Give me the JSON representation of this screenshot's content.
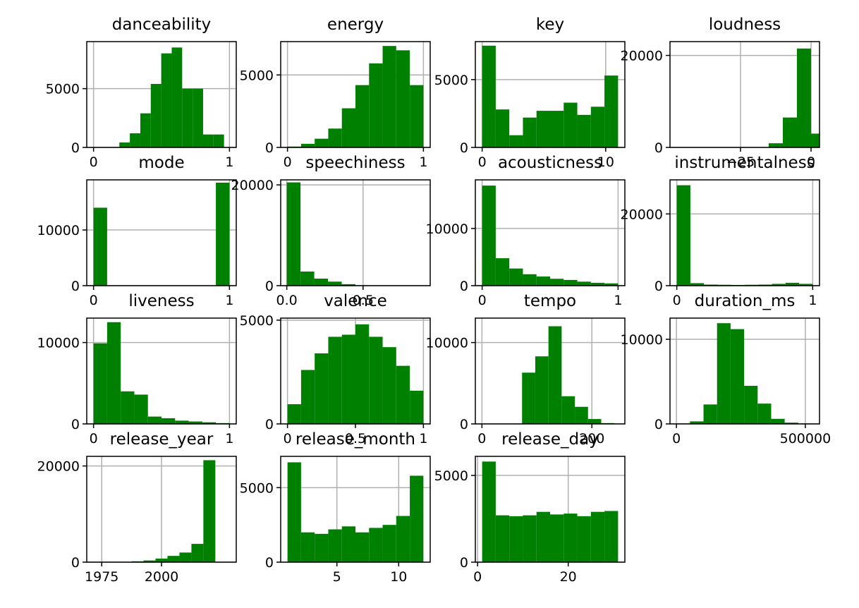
{
  "chart_data": [
    {
      "type": "bar",
      "title": "danceability",
      "xlim": [
        -0.05,
        1.05
      ],
      "ylim": [
        0,
        9000
      ],
      "xticks": [
        {
          "v": 0,
          "label": "0"
        },
        {
          "v": 1,
          "label": "1"
        }
      ],
      "yticks": [
        {
          "v": 0,
          "label": "0"
        },
        {
          "v": 5000,
          "label": "5000"
        }
      ],
      "bins": [
        [
          0.19,
          0.267,
          420
        ],
        [
          0.267,
          0.344,
          1200
        ],
        [
          0.344,
          0.421,
          2900
        ],
        [
          0.421,
          0.498,
          5400
        ],
        [
          0.498,
          0.575,
          8000
        ],
        [
          0.575,
          0.652,
          8500
        ],
        [
          0.652,
          0.729,
          5000
        ],
        [
          0.729,
          0.806,
          5000
        ],
        [
          0.806,
          0.883,
          1100
        ],
        [
          0.883,
          0.96,
          1100
        ]
      ]
    },
    {
      "type": "bar",
      "title": "energy",
      "xlim": [
        -0.05,
        1.05
      ],
      "ylim": [
        0,
        7300
      ],
      "xticks": [
        {
          "v": 0,
          "label": "0"
        },
        {
          "v": 1,
          "label": "1"
        }
      ],
      "yticks": [
        {
          "v": 0,
          "label": "0"
        },
        {
          "v": 5000,
          "label": "5000"
        }
      ],
      "bins": [
        [
          0,
          0.1,
          60
        ],
        [
          0.1,
          0.2,
          250
        ],
        [
          0.2,
          0.3,
          600
        ],
        [
          0.3,
          0.4,
          1300
        ],
        [
          0.4,
          0.5,
          2700
        ],
        [
          0.5,
          0.6,
          4300
        ],
        [
          0.6,
          0.7,
          5800
        ],
        [
          0.7,
          0.8,
          7000
        ],
        [
          0.8,
          0.9,
          6700
        ],
        [
          0.9,
          1.0,
          4300
        ]
      ]
    },
    {
      "type": "bar",
      "title": "key",
      "xlim": [
        -0.55,
        11.55
      ],
      "ylim": [
        0,
        7800
      ],
      "xticks": [
        {
          "v": 0,
          "label": "0"
        },
        {
          "v": 10,
          "label": "10"
        }
      ],
      "yticks": [
        {
          "v": 0,
          "label": "0"
        },
        {
          "v": 5000,
          "label": "5000"
        }
      ],
      "bins": [
        [
          0,
          1.1,
          7500
        ],
        [
          1.1,
          2.2,
          2800
        ],
        [
          2.2,
          3.3,
          900
        ],
        [
          3.3,
          4.4,
          2200
        ],
        [
          4.4,
          5.5,
          2700
        ],
        [
          5.5,
          6.6,
          2700
        ],
        [
          6.6,
          7.7,
          3300
        ],
        [
          7.7,
          8.8,
          2400
        ],
        [
          8.8,
          9.9,
          3000
        ],
        [
          9.9,
          11,
          5300
        ]
      ]
    },
    {
      "type": "bar",
      "title": "loudness",
      "xlim": [
        -50,
        3
      ],
      "ylim": [
        0,
        23000
      ],
      "xticks": [
        {
          "v": -25,
          "label": "−25"
        },
        {
          "v": 0,
          "label": "0"
        }
      ],
      "yticks": [
        {
          "v": 0,
          "label": "0"
        },
        {
          "v": 20000,
          "label": "20000"
        }
      ],
      "bins": [
        [
          -15,
          -10,
          900
        ],
        [
          -10,
          -5,
          6500
        ],
        [
          -5,
          0,
          21500
        ],
        [
          0,
          3,
          3000
        ]
      ]
    },
    {
      "type": "bar",
      "title": "mode",
      "xlim": [
        -0.05,
        1.05
      ],
      "ylim": [
        0,
        19000
      ],
      "xticks": [
        {
          "v": 0,
          "label": "0"
        },
        {
          "v": 1,
          "label": "1"
        }
      ],
      "yticks": [
        {
          "v": 0,
          "label": "0"
        },
        {
          "v": 10000,
          "label": "10000"
        }
      ],
      "bins": [
        [
          0,
          0.1,
          14000
        ],
        [
          0.9,
          1.0,
          18500
        ]
      ]
    },
    {
      "type": "bar",
      "title": "speechiness",
      "xlim": [
        -0.04,
        0.94
      ],
      "ylim": [
        0,
        21000
      ],
      "xticks": [
        {
          "v": 0,
          "label": "0.0"
        },
        {
          "v": 0.5,
          "label": "0.5"
        }
      ],
      "yticks": [
        {
          "v": 0,
          "label": "0"
        },
        {
          "v": 20000,
          "label": "20000"
        }
      ],
      "bins": [
        [
          0,
          0.09,
          20500
        ],
        [
          0.09,
          0.18,
          2800
        ],
        [
          0.18,
          0.27,
          1400
        ],
        [
          0.27,
          0.36,
          800
        ],
        [
          0.36,
          0.45,
          300
        ],
        [
          0.45,
          0.54,
          80
        ]
      ]
    },
    {
      "type": "bar",
      "title": "acousticness",
      "xlim": [
        -0.05,
        1.05
      ],
      "ylim": [
        0,
        18500
      ],
      "xticks": [
        {
          "v": 0,
          "label": "0"
        },
        {
          "v": 1,
          "label": "1"
        }
      ],
      "yticks": [
        {
          "v": 0,
          "label": "0"
        },
        {
          "v": 10000,
          "label": "10000"
        }
      ],
      "bins": [
        [
          0,
          0.1,
          17500
        ],
        [
          0.1,
          0.2,
          4800
        ],
        [
          0.2,
          0.3,
          3000
        ],
        [
          0.3,
          0.4,
          2000
        ],
        [
          0.4,
          0.5,
          1600
        ],
        [
          0.5,
          0.6,
          1200
        ],
        [
          0.6,
          0.7,
          1000
        ],
        [
          0.7,
          0.8,
          700
        ],
        [
          0.8,
          0.9,
          500
        ],
        [
          0.9,
          1.0,
          400
        ]
      ]
    },
    {
      "type": "bar",
      "title": "instrumentalness",
      "xlim": [
        -0.05,
        1.05
      ],
      "ylim": [
        0,
        29500
      ],
      "xticks": [
        {
          "v": 0,
          "label": "0"
        },
        {
          "v": 1,
          "label": "1"
        }
      ],
      "yticks": [
        {
          "v": 0,
          "label": "0"
        },
        {
          "v": 20000,
          "label": "20000"
        }
      ],
      "bins": [
        [
          0,
          0.1,
          28000
        ],
        [
          0.1,
          0.2,
          700
        ],
        [
          0.2,
          0.3,
          300
        ],
        [
          0.3,
          0.4,
          250
        ],
        [
          0.4,
          0.5,
          200
        ],
        [
          0.5,
          0.6,
          250
        ],
        [
          0.6,
          0.7,
          300
        ],
        [
          0.7,
          0.8,
          500
        ],
        [
          0.8,
          0.9,
          800
        ],
        [
          0.9,
          1.0,
          500
        ]
      ]
    },
    {
      "type": "bar",
      "title": "liveness",
      "xlim": [
        -0.05,
        1.05
      ],
      "ylim": [
        0,
        13000
      ],
      "xticks": [
        {
          "v": 0,
          "label": "0"
        },
        {
          "v": 1,
          "label": "1"
        }
      ],
      "yticks": [
        {
          "v": 0,
          "label": "0"
        },
        {
          "v": 10000,
          "label": "10000"
        }
      ],
      "bins": [
        [
          0,
          0.1,
          9900
        ],
        [
          0.1,
          0.2,
          12500
        ],
        [
          0.2,
          0.3,
          4000
        ],
        [
          0.3,
          0.4,
          3600
        ],
        [
          0.4,
          0.5,
          900
        ],
        [
          0.5,
          0.6,
          700
        ],
        [
          0.6,
          0.7,
          400
        ],
        [
          0.7,
          0.8,
          300
        ],
        [
          0.8,
          0.9,
          200
        ],
        [
          0.9,
          1.0,
          100
        ]
      ]
    },
    {
      "type": "bar",
      "title": "valence",
      "xlim": [
        -0.05,
        1.05
      ],
      "ylim": [
        0,
        5100
      ],
      "xticks": [
        {
          "v": 0,
          "label": "0"
        },
        {
          "v": 0.5,
          "label": "0.5"
        },
        {
          "v": 1,
          "label": "1"
        }
      ],
      "yticks": [
        {
          "v": 0,
          "label": "0"
        },
        {
          "v": 5000,
          "label": "5000"
        }
      ],
      "bins": [
        [
          0,
          0.1,
          950
        ],
        [
          0.1,
          0.2,
          2600
        ],
        [
          0.2,
          0.3,
          3400
        ],
        [
          0.3,
          0.4,
          4200
        ],
        [
          0.4,
          0.5,
          4300
        ],
        [
          0.5,
          0.6,
          4800
        ],
        [
          0.6,
          0.7,
          4200
        ],
        [
          0.7,
          0.8,
          3700
        ],
        [
          0.8,
          0.9,
          2800
        ],
        [
          0.9,
          1.0,
          1600
        ]
      ]
    },
    {
      "type": "bar",
      "title": "tempo",
      "xlim": [
        -12,
        260
      ],
      "ylim": [
        0,
        13000
      ],
      "xticks": [
        {
          "v": 0,
          "label": "0"
        },
        {
          "v": 200,
          "label": "200"
        }
      ],
      "yticks": [
        {
          "v": 0,
          "label": "0"
        },
        {
          "v": 10000,
          "label": "10000"
        }
      ],
      "bins": [
        [
          73,
          97,
          6300
        ],
        [
          97,
          121,
          8300
        ],
        [
          121,
          145,
          12000
        ],
        [
          145,
          169,
          3400
        ],
        [
          169,
          193,
          2100
        ],
        [
          193,
          217,
          600
        ],
        [
          217,
          241,
          100
        ]
      ]
    },
    {
      "type": "bar",
      "title": "duration_ms",
      "xlim": [
        -25000,
        555000
      ],
      "ylim": [
        0,
        12500
      ],
      "xticks": [
        {
          "v": 0,
          "label": "0"
        },
        {
          "v": 500000,
          "label": "500000"
        }
      ],
      "yticks": [
        {
          "v": 0,
          "label": "0"
        },
        {
          "v": 10000,
          "label": "10000"
        }
      ],
      "bins": [
        [
          0,
          52500,
          50
        ],
        [
          52500,
          105000,
          300
        ],
        [
          105000,
          157500,
          2300
        ],
        [
          157500,
          210000,
          11900
        ],
        [
          210000,
          262500,
          11200
        ],
        [
          262500,
          315000,
          4500
        ],
        [
          315000,
          367500,
          2400
        ],
        [
          367500,
          420000,
          600
        ],
        [
          420000,
          472500,
          150
        ],
        [
          472500,
          525000,
          50
        ]
      ]
    },
    {
      "type": "bar",
      "title": "release_year",
      "xlim": [
        -1.25,
        1.25
      ],
      "ylim": [
        0,
        22000
      ],
      "xticks": [
        {
          "v": -1,
          "label": "1975"
        },
        {
          "v": 0,
          "label": "2000"
        }
      ],
      "yticks": [
        {
          "v": 0,
          "label": "0"
        },
        {
          "v": 20000,
          "label": "20000"
        }
      ],
      "bins": [
        [
          -0.7,
          -0.5,
          60
        ],
        [
          -0.5,
          -0.3,
          180
        ],
        [
          -0.3,
          -0.1,
          350
        ],
        [
          -0.1,
          0.1,
          750
        ],
        [
          0.1,
          0.3,
          1300
        ],
        [
          0.3,
          0.5,
          2000
        ],
        [
          0.5,
          0.7,
          3800
        ],
        [
          0.7,
          0.9,
          21200
        ]
      ]
    },
    {
      "type": "bar",
      "title": "release_month",
      "xlim": [
        0.45,
        12.55
      ],
      "ylim": [
        0,
        7100
      ],
      "xticks": [
        {
          "v": 5,
          "label": "5"
        },
        {
          "v": 10,
          "label": "10"
        }
      ],
      "yticks": [
        {
          "v": 0,
          "label": "0"
        },
        {
          "v": 5000,
          "label": "5000"
        }
      ],
      "bins": [
        [
          1,
          2.1,
          6700
        ],
        [
          2.1,
          3.2,
          2000
        ],
        [
          3.2,
          4.3,
          1900
        ],
        [
          4.3,
          5.4,
          2200
        ],
        [
          5.4,
          6.5,
          2400
        ],
        [
          6.5,
          7.6,
          2000
        ],
        [
          7.6,
          8.7,
          2300
        ],
        [
          8.7,
          9.8,
          2500
        ],
        [
          9.8,
          10.9,
          3100
        ],
        [
          10.9,
          12,
          5800
        ]
      ]
    },
    {
      "type": "bar",
      "title": "release_day",
      "xlim": [
        -0.5,
        32.5
      ],
      "ylim": [
        0,
        6100
      ],
      "xticks": [
        {
          "v": 0,
          "label": "0"
        },
        {
          "v": 20,
          "label": "20"
        }
      ],
      "yticks": [
        {
          "v": 0,
          "label": "0"
        },
        {
          "v": 5000,
          "label": "5000"
        }
      ],
      "bins": [
        [
          1,
          4,
          5800
        ],
        [
          4,
          7,
          2700
        ],
        [
          7,
          10,
          2650
        ],
        [
          10,
          13,
          2700
        ],
        [
          13,
          16,
          2900
        ],
        [
          16,
          19,
          2750
        ],
        [
          19,
          22,
          2800
        ],
        [
          22,
          25,
          2650
        ],
        [
          25,
          28,
          2900
        ],
        [
          28,
          31,
          2950
        ]
      ]
    }
  ],
  "colors": {
    "bar": "#008000",
    "grid": "#b0b0b0",
    "frame": "#000000",
    "background": "#ffffff"
  }
}
